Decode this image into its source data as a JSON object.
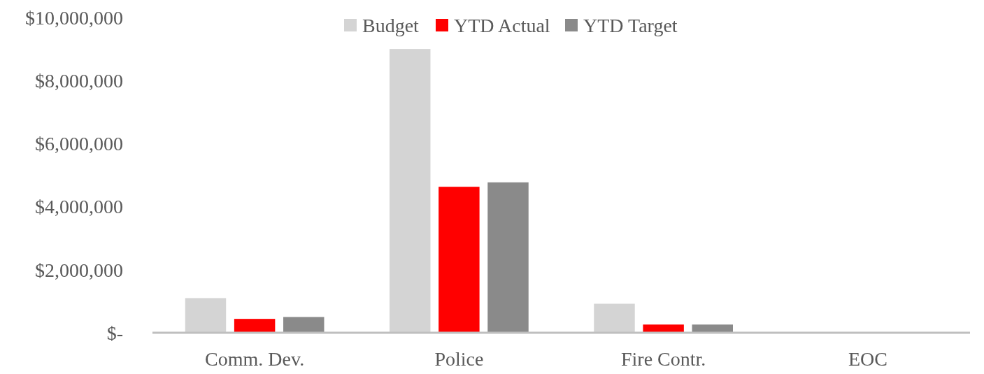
{
  "chart_data": {
    "type": "bar",
    "categories": [
      "Comm. Dev.",
      "Police",
      "Fire Contr.",
      "EOC"
    ],
    "series": [
      {
        "name": "Budget",
        "color": "#d4d4d4",
        "values": [
          1100000,
          9000000,
          920000,
          0
        ]
      },
      {
        "name": "YTD Actual",
        "color": "#ff0000",
        "values": [
          440000,
          4630000,
          260000,
          0
        ]
      },
      {
        "name": "YTD Target",
        "color": "#8a8a8a",
        "values": [
          500000,
          4770000,
          260000,
          0
        ]
      }
    ],
    "ylim": [
      0,
      10000000
    ],
    "yticks": [
      {
        "value": 0,
        "label": "$-"
      },
      {
        "value": 2000000,
        "label": "$2,000,000"
      },
      {
        "value": 4000000,
        "label": "$4,000,000"
      },
      {
        "value": 6000000,
        "label": "$6,000,000"
      },
      {
        "value": 8000000,
        "label": "$8,000,000"
      },
      {
        "value": 10000000,
        "label": "$10,000,000"
      }
    ],
    "grid": false,
    "legend": "top"
  }
}
